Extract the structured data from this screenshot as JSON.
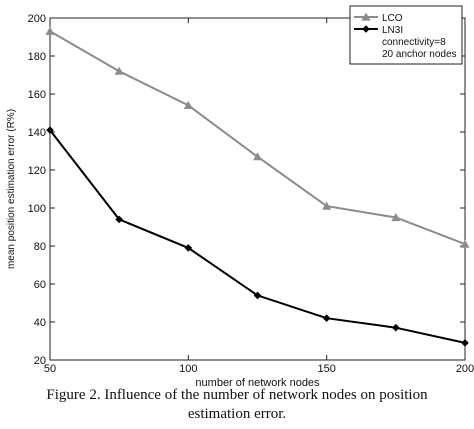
{
  "chart_data": {
    "type": "line",
    "title": "",
    "xlabel": "number of network nodes",
    "ylabel": "mean position estimation error (R%)",
    "xlim": [
      50,
      200
    ],
    "ylim": [
      20,
      200
    ],
    "xticks": [
      "50",
      "100",
      "150",
      "200"
    ],
    "yticks": [
      "20",
      "40",
      "60",
      "80",
      "100",
      "120",
      "140",
      "160",
      "180",
      "200"
    ],
    "grid": false,
    "legend_position": "top-right",
    "legend_notes": [
      "connectivity=8",
      "20 anchor nodes"
    ],
    "series": [
      {
        "name": "LCO",
        "marker": "triangle",
        "color": "#8c8c8c",
        "x": [
          50,
          75,
          100,
          125,
          150,
          175,
          200
        ],
        "y": [
          193,
          172,
          154,
          127,
          101,
          95,
          81
        ]
      },
      {
        "name": "LN3I",
        "marker": "diamond",
        "color": "#000000",
        "x": [
          50,
          75,
          100,
          125,
          150,
          175,
          200
        ],
        "y": [
          141,
          94,
          79,
          54,
          42,
          37,
          29
        ]
      }
    ]
  },
  "caption": {
    "line1": "Figure 2.   Influence of the number of network nodes on position",
    "line2": "estimation error."
  }
}
